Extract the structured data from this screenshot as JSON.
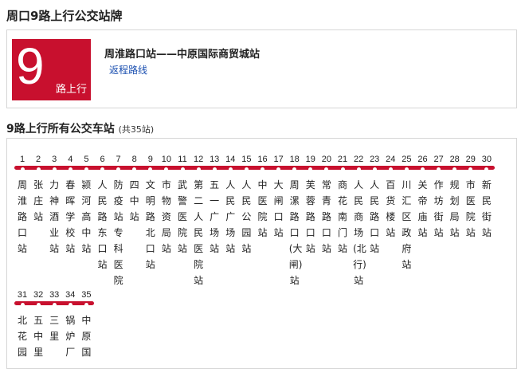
{
  "page": {
    "title": "周口9路上行公交站牌"
  },
  "route": {
    "number": "9",
    "direction": "路上行",
    "name": "周淮路口站——中原国际商贸城站",
    "return_link": "返程路线",
    "accent_color": "#c8102e"
  },
  "stops_section": {
    "title": "9路上行所有公交车站",
    "count": "(共35站)"
  },
  "stops": [
    {
      "num": "1",
      "name": "周淮路口站"
    },
    {
      "num": "2",
      "name": "张庄站"
    },
    {
      "num": "3",
      "name": "力神酒业站"
    },
    {
      "num": "4",
      "name": "春晖学校站"
    },
    {
      "num": "5",
      "name": "颍河高中站"
    },
    {
      "num": "6",
      "name": "人民路东口站"
    },
    {
      "num": "7",
      "name": "防疫站专科医院"
    },
    {
      "num": "8",
      "name": "四中站"
    },
    {
      "num": "9",
      "name": "文明路北口站"
    },
    {
      "num": "10",
      "name": "市物资局站"
    },
    {
      "num": "11",
      "name": "武警医院站"
    },
    {
      "num": "12",
      "name": "第二人民医院站"
    },
    {
      "num": "13",
      "name": "五一广场站"
    },
    {
      "num": "14",
      "name": "人民广场站"
    },
    {
      "num": "15",
      "name": "人民公园站"
    },
    {
      "num": "16",
      "name": "中医院站"
    },
    {
      "num": "17",
      "name": "大闸口站"
    },
    {
      "num": "18",
      "name": "周漯路口(大闸)站"
    },
    {
      "num": "19",
      "name": "芙蓉路口站"
    },
    {
      "num": "20",
      "name": "常青路口站"
    },
    {
      "num": "21",
      "name": "商花南门站"
    },
    {
      "num": "22",
      "name": "人民商场(北行)站"
    },
    {
      "num": "23",
      "name": "人民路口站"
    },
    {
      "num": "24",
      "name": "百货楼站"
    },
    {
      "num": "25",
      "name": "川汇区政府站"
    },
    {
      "num": "26",
      "name": "关帝庙站"
    },
    {
      "num": "27",
      "name": "作坊街站"
    },
    {
      "num": "28",
      "name": "规划局站"
    },
    {
      "num": "29",
      "name": "市医院站"
    },
    {
      "num": "30",
      "name": "新民街站"
    },
    {
      "num": "31",
      "name": "北花园"
    },
    {
      "num": "32",
      "name": "五中里"
    },
    {
      "num": "33",
      "name": "三里"
    },
    {
      "num": "34",
      "name": "锅炉厂"
    },
    {
      "num": "35",
      "name": "中原国"
    }
  ]
}
